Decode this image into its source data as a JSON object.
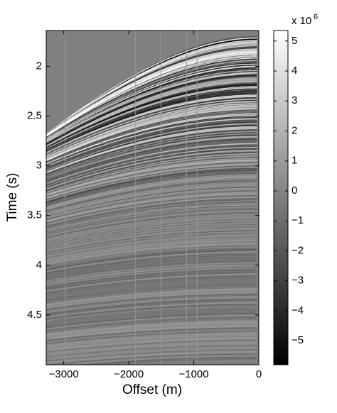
{
  "chart_data": {
    "type": "image",
    "xlabel": "Offset (m)",
    "ylabel": "Time (s)",
    "xlim": [
      -3270,
      0
    ],
    "xticks": [
      {
        "value": -3000,
        "label": "−3000"
      },
      {
        "value": -2000,
        "label": "−2000"
      },
      {
        "value": -1000,
        "label": "−1000"
      },
      0
    ],
    "ylim": [
      1.64,
      5.0
    ],
    "y_reversed": true,
    "yticks": [
      2,
      2.5,
      3,
      3.5,
      4,
      4.5
    ],
    "colorbar": {
      "clim": [
        -5.8,
        5.35
      ],
      "multiplier": "x 10",
      "exponent": "6",
      "ticks": [
        {
          "value": -5,
          "label": "−5"
        },
        {
          "value": -4,
          "label": "−4"
        },
        {
          "value": -3,
          "label": "−3"
        },
        {
          "value": -2,
          "label": "−2"
        },
        {
          "value": -1,
          "label": "−1"
        },
        0,
        1,
        2,
        3,
        4,
        5
      ],
      "colors": [
        "#000000",
        "#ffffff"
      ]
    }
  }
}
